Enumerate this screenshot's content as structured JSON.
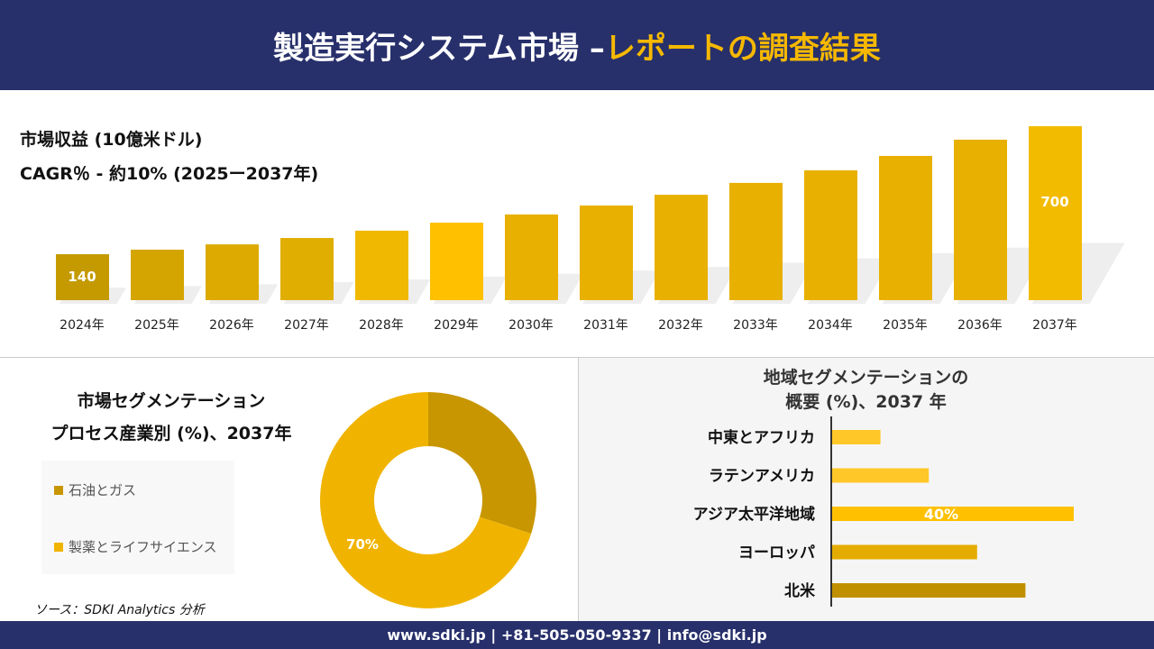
{
  "header": {
    "title_main": "製造実行システム市場 –",
    "title_accent": "レポートの調査結果"
  },
  "revenue": {
    "label": "市場収益 (10億米ドル)",
    "cagr": "CAGR％ - 約10% (2025ー2037年)"
  },
  "chart_data": [
    {
      "type": "bar",
      "title": "市場収益 (10億米ドル)",
      "categories": [
        "2024年",
        "2025年",
        "2026年",
        "2027年",
        "2028年",
        "2029年",
        "2030年",
        "2031年",
        "2032年",
        "2033年",
        "2034年",
        "2035年",
        "2036年",
        "2037年"
      ],
      "values": [
        140,
        160,
        183,
        211,
        243,
        278,
        314,
        353,
        400,
        452,
        507,
        570,
        641,
        700
      ],
      "data_labels": {
        "0": "140",
        "13": "700"
      },
      "colors": [
        "#c49a00",
        "#d4a500",
        "#dcaa00",
        "#e0ae00",
        "#f0b800",
        "#ffc000",
        "#e8b000",
        "#e8b000",
        "#e8b000",
        "#e8b000",
        "#e8b000",
        "#e8b000",
        "#e8b000",
        "#f2bb00"
      ]
    },
    {
      "type": "pie",
      "title": "市場セグメンテーション プロセス産業別 (%)、2037年",
      "labels": [
        "石油とガス",
        "製薬とライフサイエンス"
      ],
      "values": [
        30,
        70
      ],
      "colors": [
        "#c89600",
        "#f0b400"
      ],
      "data_labels": [
        "",
        "70%"
      ]
    },
    {
      "type": "bar",
      "orientation": "horizontal",
      "title": "地域セグメンテーションの概要 (%)、2037 年",
      "categories": [
        "中東とアフリカ",
        "ラテンアメリカ",
        "アジア太平洋地域",
        "ヨーロッパ",
        "北米"
      ],
      "values": [
        8,
        16,
        40,
        24,
        32
      ],
      "data_labels": [
        "",
        "",
        "40%",
        "",
        ""
      ],
      "colors": [
        "#ffc727",
        "#ffc727",
        "#ffc000",
        "#e4ac00",
        "#c09000"
      ]
    }
  ],
  "segment": {
    "title1": "市場セグメンテーション",
    "title2": "プロセス産業別 (%)、2037年"
  },
  "region": {
    "title1": "地域セグメンテーションの",
    "title2": "概要 (%)、2037 年"
  },
  "source": "ソース：SDKI Analytics 分析",
  "footer": "www.sdki.jp | +81-505-050-9337 | info@sdki.jp"
}
